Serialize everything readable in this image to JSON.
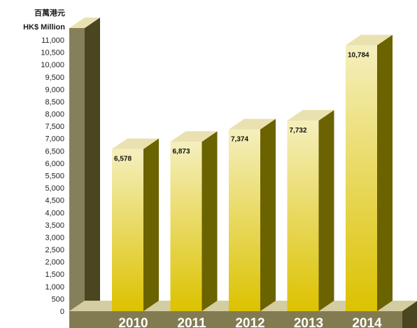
{
  "colors": {
    "bar_top_light": "#f5efbe",
    "bar_bottom": "#dcc200",
    "bar_side": "#6b6200",
    "bar_cap": "#e9e2b0",
    "wall_face": "#857f5b",
    "wall_side": "#4a461f",
    "floor_top": "#d3cda1",
    "floor_front": "#827b52"
  },
  "chart_data": {
    "type": "bar",
    "title": "",
    "unit_label_zh": "百萬港元",
    "unit_label_en": "HK$ Million",
    "categories": [
      "2010",
      "2011",
      "2012",
      "2013",
      "2014"
    ],
    "values": [
      6578,
      6873,
      7374,
      7732,
      10784
    ],
    "value_labels": [
      "6,578",
      "6,873",
      "7,374",
      "7,732",
      "10,784"
    ],
    "ylim": [
      0,
      11000
    ],
    "yticks": [
      0,
      500,
      1000,
      1500,
      2000,
      2500,
      3000,
      3500,
      4000,
      4500,
      5000,
      5500,
      6000,
      6500,
      7000,
      7500,
      8000,
      8500,
      9000,
      9500,
      10000,
      10500,
      11000
    ],
    "ytick_labels": [
      "0",
      "500",
      "1,000",
      "1,500",
      "2,000",
      "2,500",
      "3,000",
      "3,500",
      "4,000",
      "4,500",
      "5,000",
      "5,500",
      "6,000",
      "6,500",
      "7,000",
      "7,500",
      "8,000",
      "8,500",
      "9,000",
      "9,500",
      "10,000",
      "10,500",
      "11,000"
    ],
    "grid": false,
    "legend": "none",
    "style": "3d"
  }
}
